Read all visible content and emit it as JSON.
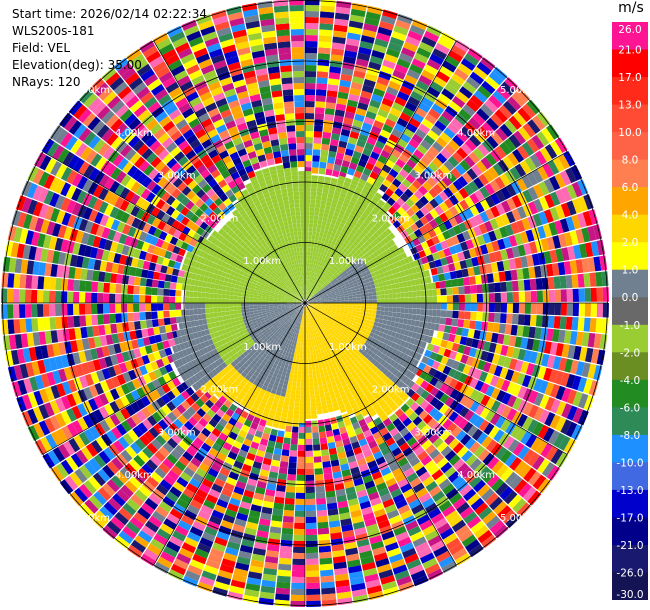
{
  "header": {
    "start_time": "Start time: 2026/02/14 02:22:34",
    "instrument": "WLS200s-181",
    "field": "Field: VEL",
    "elevation": "Elevation(deg): 35.00",
    "nrays": "NRays: 120"
  },
  "range_rings": [
    {
      "label": "1.00km"
    },
    {
      "label": "2.00km"
    },
    {
      "label": "3.00km"
    },
    {
      "label": "4.00km"
    },
    {
      "label": "5.00km"
    }
  ],
  "colorbar": {
    "units": "m/s",
    "ticks": [
      "26.0",
      "21.0",
      "17.0",
      "13.0",
      "10.0",
      "8.0",
      "6.0",
      "4.0",
      "2.0",
      "1.0",
      "0.0",
      "-1.0",
      "-2.0",
      "-4.0",
      "-6.0",
      "-8.0",
      "-10.0",
      "-13.0",
      "-17.0",
      "-21.0",
      "-26.0",
      "-30.0"
    ],
    "colors": [
      "#ff1493",
      "#ff0000",
      "#ff2a1a",
      "#ff4b33",
      "#ff6347",
      "#ff7f50",
      "#ffa500",
      "#ffd700",
      "#ffff00",
      "#708090",
      "#696969",
      "#9acd32",
      "#6b8e23",
      "#228b22",
      "#2e8b57",
      "#1e90ff",
      "#4169e1",
      "#0000cd",
      "#00008b",
      "#191970",
      "#141454"
    ]
  },
  "colors": {
    "inner_green": "#9acd32",
    "inner_gray": "#708090",
    "inner_yellow": "#ffd700",
    "noise_palette": [
      "#ff1493",
      "#ff0000",
      "#ff4b33",
      "#ff7f50",
      "#ffa500",
      "#ffd700",
      "#ffff00",
      "#708090",
      "#9acd32",
      "#228b22",
      "#2e8b57",
      "#1e90ff",
      "#0000cd",
      "#00008b",
      "#191970",
      "#ff69b4",
      "#c71585"
    ]
  }
}
